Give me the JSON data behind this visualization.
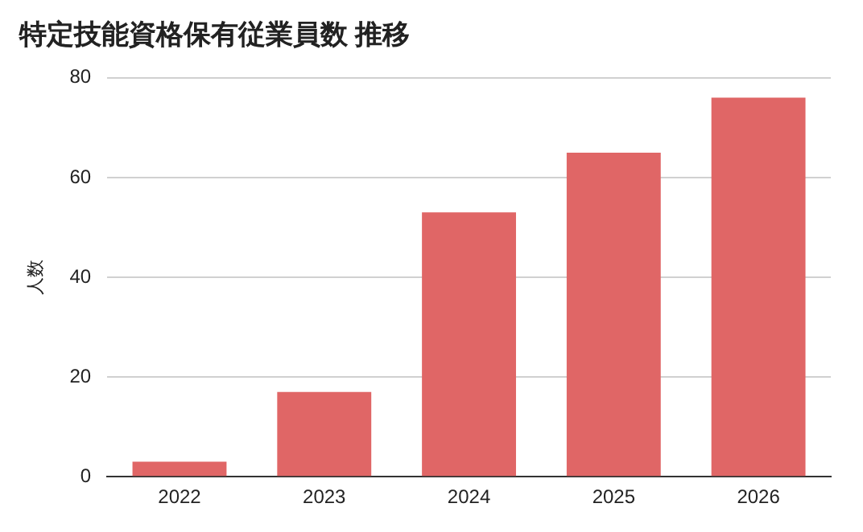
{
  "chart_data": {
    "type": "bar",
    "title": "特定技能資格保有従業員数 推移",
    "ylabel": "人数",
    "categories": [
      "2022",
      "2023",
      "2024",
      "2025",
      "2026"
    ],
    "values": [
      3,
      17,
      53,
      65,
      76
    ],
    "color": "#e06666",
    "ylim": [
      0,
      80
    ],
    "yticks": [
      0,
      20,
      40,
      60,
      80
    ],
    "grid": "y",
    "legend": false
  }
}
